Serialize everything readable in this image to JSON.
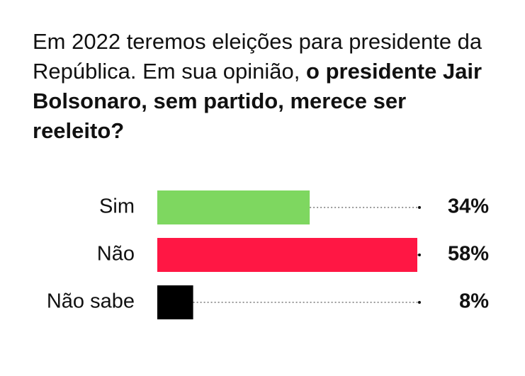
{
  "chart_data": {
    "type": "bar",
    "orientation": "horizontal",
    "title": [
      "Em 2022 teremos eleições para presidente da República. Em sua opinião,",
      "o presidente Jair Bolsonaro, sem partido, merece ser reeleito?"
    ],
    "categories": [
      "Sim",
      "Não",
      "Não sabe"
    ],
    "values": [
      34,
      58,
      8
    ],
    "value_labels": [
      "34%",
      "58%",
      "8%"
    ],
    "colors": [
      "#7ed760",
      "#ff1744",
      "#000000"
    ]
  }
}
